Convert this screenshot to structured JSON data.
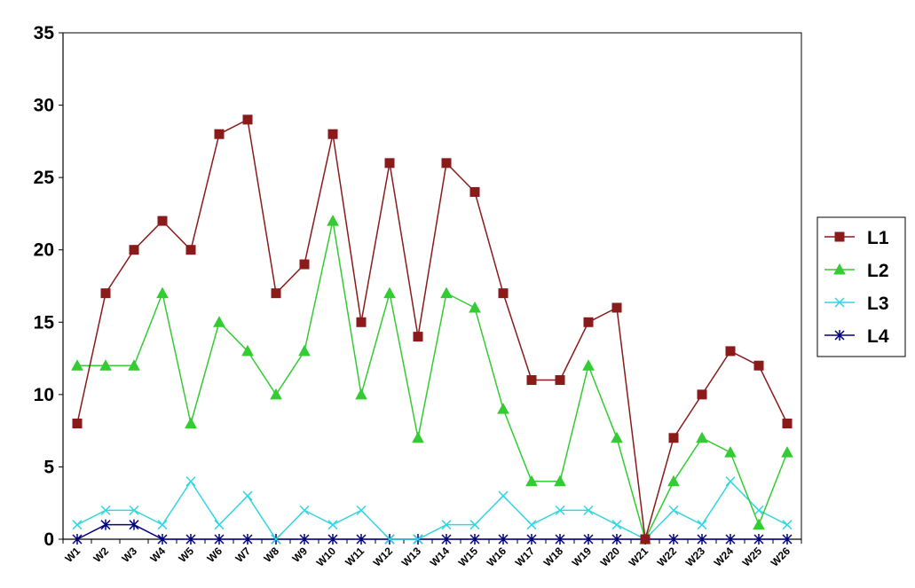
{
  "chart_data": {
    "type": "line",
    "title": "",
    "xlabel": "",
    "ylabel": "",
    "ylim": [
      0,
      35
    ],
    "y_ticks": [
      "0",
      "5",
      "10",
      "15",
      "20",
      "25",
      "30",
      "35"
    ],
    "grid": "horizontal",
    "legend_position": "right",
    "categories": [
      "W1",
      "W2",
      "W3",
      "W4",
      "W5",
      "W6",
      "W7",
      "W8",
      "W9",
      "W10",
      "W11",
      "W12",
      "W13",
      "W14",
      "W15",
      "W16",
      "W17",
      "W18",
      "W19",
      "W20",
      "W21",
      "W22",
      "W23",
      "W24",
      "W25",
      "W26"
    ],
    "series": [
      {
        "name": "L1",
        "color": "#8b1a1a",
        "marker": "square",
        "values": [
          8,
          17,
          20,
          22,
          20,
          28,
          29,
          17,
          19,
          28,
          15,
          26,
          14,
          26,
          24,
          17,
          11,
          11,
          15,
          16,
          0,
          7,
          10,
          13,
          12,
          8
        ]
      },
      {
        "name": "L2",
        "color": "#33cc33",
        "marker": "triangle",
        "values": [
          12,
          12,
          12,
          17,
          8,
          15,
          13,
          10,
          13,
          22,
          10,
          17,
          7,
          17,
          16,
          9,
          4,
          4,
          12,
          7,
          0,
          4,
          7,
          6,
          1,
          6
        ]
      },
      {
        "name": "L3",
        "color": "#33d6e0",
        "marker": "x",
        "values": [
          1,
          2,
          2,
          1,
          4,
          1,
          3,
          0,
          2,
          1,
          2,
          0,
          0,
          1,
          1,
          3,
          1,
          2,
          2,
          1,
          0,
          2,
          1,
          4,
          2,
          1
        ]
      },
      {
        "name": "L4",
        "color": "#000080",
        "marker": "star",
        "values": [
          0,
          1,
          1,
          0,
          0,
          0,
          0,
          0,
          0,
          0,
          0,
          0,
          0,
          0,
          0,
          0,
          0,
          0,
          0,
          0,
          0,
          0,
          0,
          0,
          0,
          0
        ]
      }
    ]
  }
}
